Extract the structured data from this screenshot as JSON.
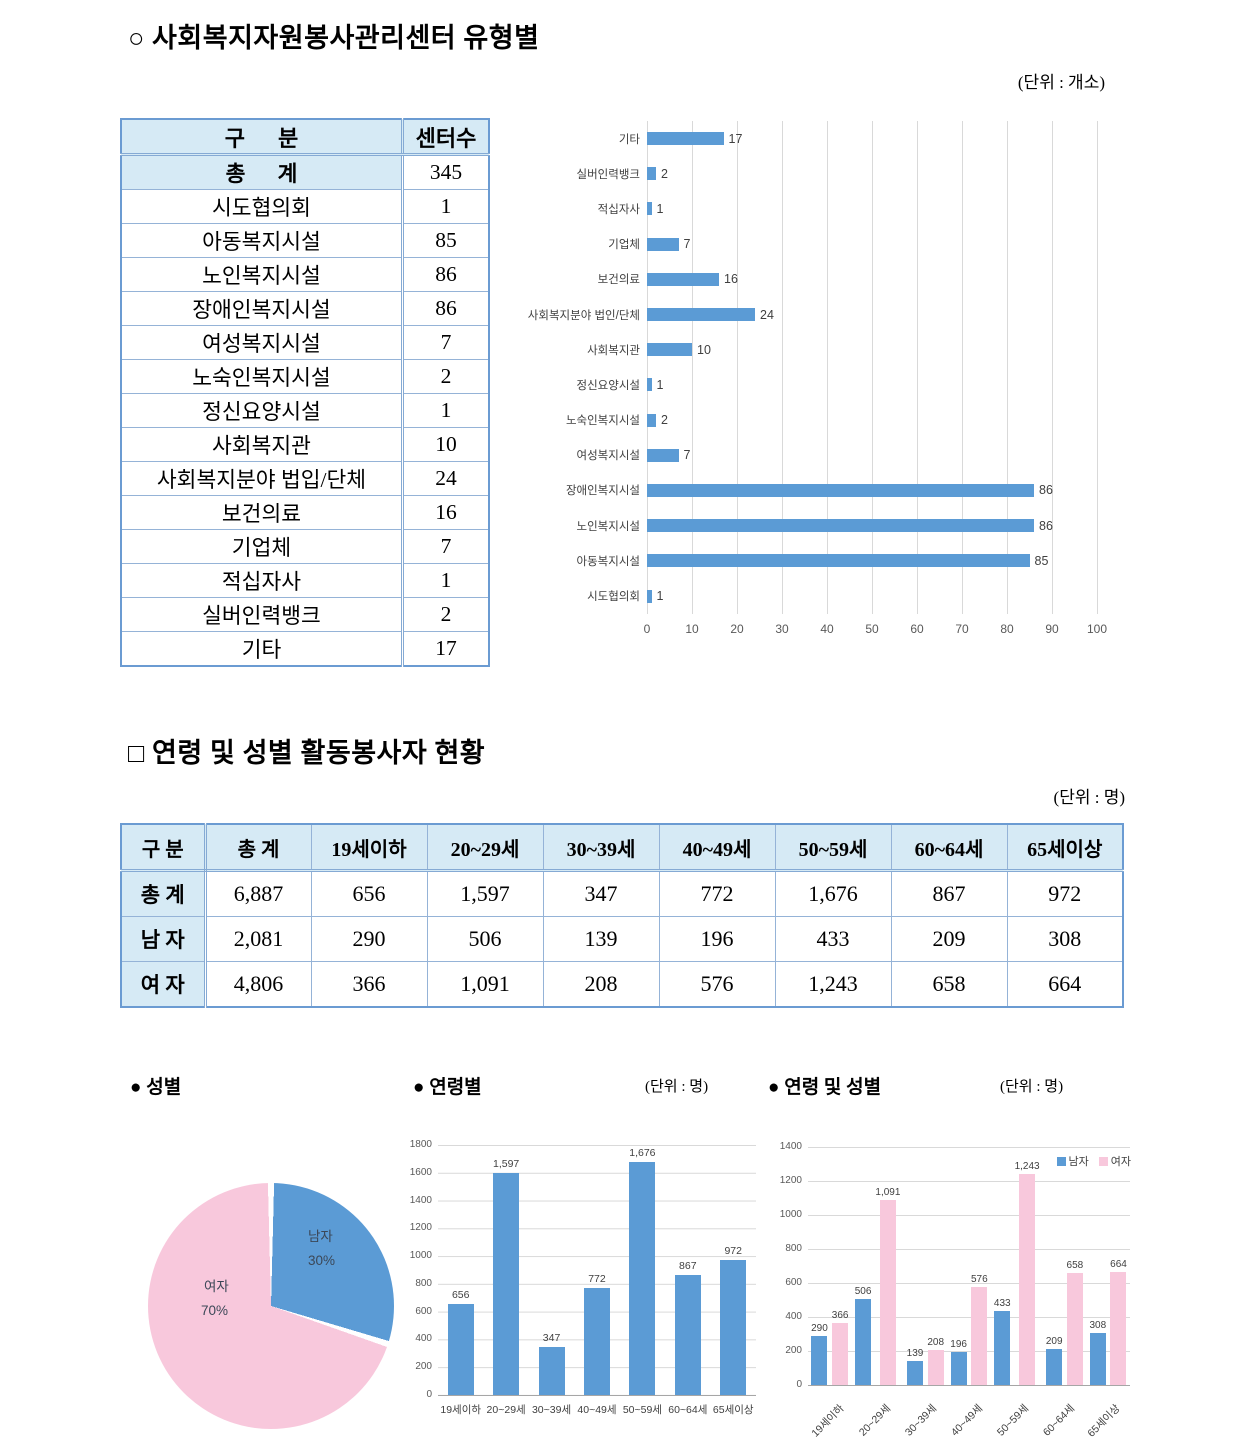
{
  "section1": {
    "title": "○ 사회복지자원봉사관리센터 유형별",
    "unit": "(단위 : 개소)",
    "table": {
      "col_headers": [
        "구      분",
        "센터수"
      ],
      "rows": [
        {
          "label": "총      계",
          "value": "345",
          "is_total": true
        },
        {
          "label": "시도협의회",
          "value": "1"
        },
        {
          "label": "아동복지시설",
          "value": "85"
        },
        {
          "label": "노인복지시설",
          "value": "86"
        },
        {
          "label": "장애인복지시설",
          "value": "86"
        },
        {
          "label": "여성복지시설",
          "value": "7"
        },
        {
          "label": "노숙인복지시설",
          "value": "2"
        },
        {
          "label": "정신요양시설",
          "value": "1"
        },
        {
          "label": "사회복지관",
          "value": "10"
        },
        {
          "label": "사회복지분야 법입/단체",
          "value": "24"
        },
        {
          "label": "보건의료",
          "value": "16"
        },
        {
          "label": "기업체",
          "value": "7"
        },
        {
          "label": "적십자사",
          "value": "1"
        },
        {
          "label": "실버인력뱅크",
          "value": "2"
        },
        {
          "label": "기타",
          "value": "17"
        }
      ]
    }
  },
  "section2": {
    "title": "□ 연령 및 성별 활동봉사자 현황",
    "unit": "(단위 : 명)",
    "table": {
      "col_headers": [
        "구 분",
        "총 계",
        "19세이하",
        "20~29세",
        "30~39세",
        "40~49세",
        "50~59세",
        "60~64세",
        "65세이상"
      ],
      "rows": [
        {
          "label": "총 계",
          "values": [
            "6,887",
            "656",
            "1,597",
            "347",
            "772",
            "1,676",
            "867",
            "972"
          ]
        },
        {
          "label": "남 자",
          "values": [
            "2,081",
            "290",
            "506",
            "139",
            "196",
            "433",
            "209",
            "308"
          ]
        },
        {
          "label": "여 자",
          "values": [
            "4,806",
            "366",
            "1,091",
            "208",
            "576",
            "1,243",
            "658",
            "664"
          ]
        }
      ]
    }
  },
  "charts_row": {
    "gender_title": "● 성별",
    "age_title": "● 연령별",
    "age_unit": "(단위 : 명)",
    "age_gender_title": "● 연령 및 성별",
    "age_gender_unit": "(단위 : 명)"
  },
  "colors": {
    "bar_blue": "#5b9bd5",
    "bar_pink": "#f8c8dc",
    "table_header_bg": "#d6eaf5",
    "gridline": "#d9d9d9"
  },
  "chart_data": [
    {
      "id": "center-type-hbar",
      "type": "bar",
      "orientation": "horizontal",
      "categories": [
        "기타",
        "실버인력뱅크",
        "적십자사",
        "기업체",
        "보건의료",
        "사회복지분야 법인/단체",
        "사회복지관",
        "정신요양시설",
        "노숙인복지시설",
        "여성복지시설",
        "장애인복지시설",
        "노인복지시설",
        "아동복지시설",
        "시도협의회"
      ],
      "values": [
        17,
        2,
        1,
        7,
        16,
        24,
        10,
        1,
        2,
        7,
        86,
        86,
        85,
        1
      ],
      "xlim": [
        0,
        100
      ],
      "xticks": [
        "0",
        "10",
        "20",
        "30",
        "40",
        "50",
        "60",
        "70",
        "80",
        "90",
        "100"
      ],
      "bar_color": "#5b9bd5",
      "data_labels": true,
      "grid": true
    },
    {
      "id": "gender-pie",
      "type": "pie",
      "slices": [
        {
          "label": "남자",
          "pct": 30,
          "pct_label": "30%",
          "color": "#5b9bd5"
        },
        {
          "label": "여자",
          "pct": 70,
          "pct_label": "70%",
          "color": "#f8c8dc"
        }
      ]
    },
    {
      "id": "age-bar",
      "type": "bar",
      "categories": [
        "19세이하",
        "20~29세",
        "30~39세",
        "40~49세",
        "50~59세",
        "60~64세",
        "65세이상"
      ],
      "values": [
        656,
        1597,
        347,
        772,
        1676,
        867,
        972
      ],
      "value_labels": [
        "656",
        "1,597",
        "347",
        "772",
        "1,676",
        "867",
        "972"
      ],
      "ylim": [
        0,
        1800
      ],
      "ytick_step": 200,
      "bar_color": "#5b9bd5",
      "grid": true
    },
    {
      "id": "age-gender-grouped-bar",
      "type": "bar",
      "categories": [
        "19세이하",
        "20~29세",
        "30~39세",
        "40~49세",
        "50~59세",
        "60~64세",
        "65세이상"
      ],
      "series": [
        {
          "name": "남자",
          "color": "#5b9bd5",
          "values": [
            290,
            506,
            139,
            196,
            433,
            209,
            308
          ],
          "value_labels": [
            "290",
            "506",
            "139",
            "196",
            "433",
            "209",
            "308"
          ]
        },
        {
          "name": "여자",
          "color": "#f8c8dc",
          "values": [
            366,
            1091,
            208,
            576,
            1243,
            658,
            664
          ],
          "value_labels": [
            "366",
            "1,091",
            "208",
            "576",
            "1,243",
            "658",
            "664"
          ]
        }
      ],
      "ylim": [
        0,
        1400
      ],
      "ytick_step": 200,
      "legend_position": "top-right",
      "grid": true
    }
  ]
}
